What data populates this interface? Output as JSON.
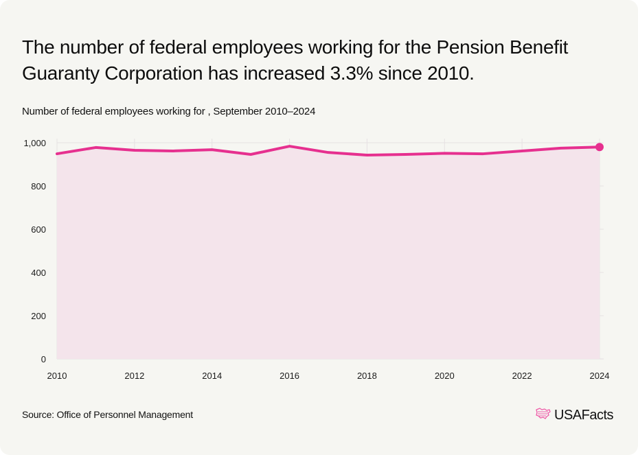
{
  "header": {
    "title": "The number of federal employees working for the Pension Benefit Guaranty Corporation has increased 3.3% since 2010.",
    "subtitle": "Number of federal employees working for , September 2010–2024"
  },
  "footer": {
    "source": "Source: Office of Personnel Management",
    "brand": "USAFacts",
    "brand_icon": "usa-map-flag-icon"
  },
  "colors": {
    "line": "#e6308f",
    "area": "#f4e4eb",
    "grid": "#e6e1e3",
    "background": "#f6f6f2"
  },
  "chart_data": {
    "type": "area",
    "title": "The number of federal employees working for the Pension Benefit Guaranty Corporation has increased 3.3% since 2010.",
    "subtitle": "Number of federal employees working for , September 2010–2024",
    "xlabel": "",
    "ylabel": "",
    "x": [
      2010,
      2011,
      2012,
      2013,
      2014,
      2015,
      2016,
      2017,
      2018,
      2019,
      2020,
      2021,
      2022,
      2023,
      2024
    ],
    "series": [
      {
        "name": "Federal employees",
        "values": [
          949,
          978,
          965,
          962,
          968,
          946,
          984,
          955,
          943,
          946,
          951,
          949,
          962,
          975,
          980
        ]
      }
    ],
    "xlim": [
      2010,
      2024
    ],
    "ylim": [
      0,
      1000
    ],
    "x_ticks": [
      2010,
      2012,
      2014,
      2016,
      2018,
      2020,
      2022,
      2024
    ],
    "x_tick_labels": [
      "2010",
      "2012",
      "2014",
      "2016",
      "2018",
      "2020",
      "2022",
      "2024"
    ],
    "y_ticks": [
      0,
      200,
      400,
      600,
      800,
      1000
    ],
    "y_tick_labels": [
      "0",
      "200",
      "400",
      "600",
      "800",
      "1,000"
    ],
    "grid": true,
    "legend": "none",
    "end_marker": true
  }
}
